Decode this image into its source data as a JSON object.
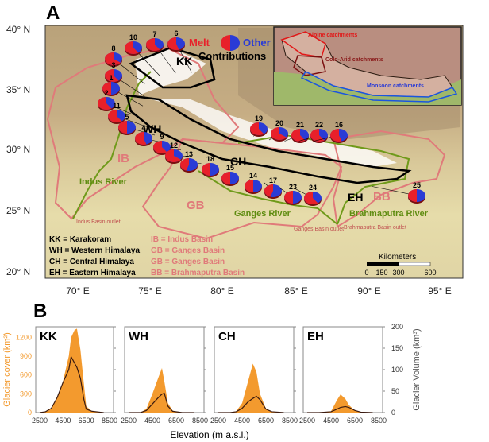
{
  "panel_a": {
    "letter": "A",
    "lat_labels": [
      "40° N",
      "35° N",
      "30° N",
      "25° N",
      "20° N"
    ],
    "lon_labels": [
      "70° E",
      "75° E",
      "80° E",
      "85° E",
      "90° E",
      "95° E"
    ],
    "pie_legend": {
      "melt": "Melt",
      "other": "Other",
      "contributions": "Contributions"
    },
    "colors": {
      "melt": "#e8202a",
      "other": "#2a3bd6",
      "basin": "#e07a7a",
      "river": "#7aa51f",
      "region": "#000000"
    },
    "region_labels": [
      "KK",
      "WH",
      "CH",
      "EH"
    ],
    "basin_labels": [
      "IB",
      "GB",
      "BB"
    ],
    "rivers": [
      "Indus River",
      "Ganges River",
      "Brahmaputra River"
    ],
    "outlets": [
      "Indus Basin outlet",
      "Ganges Basin outlet",
      "Brahmaputra Basin outlet"
    ],
    "legend_rows": [
      {
        "left": "KK  =  Karakoram",
        "right": "IB  = Indus Basin"
      },
      {
        "left": "WH  =  Western Himalaya",
        "right": "GB = Ganges Basin"
      },
      {
        "left": "CH  =  Central Himalaya",
        "right": "GB = Ganges Basin"
      },
      {
        "left": "EH  =  Eastern Himalaya",
        "right": "BB  = Brahmaputra Basin"
      }
    ],
    "scale": {
      "title": "Kilometers",
      "ticks": [
        "0",
        "150",
        "300",
        "600"
      ]
    },
    "inset_labels": [
      "Alpine catchments",
      "Cold-Arid catchments",
      "Monsoon catchments"
    ],
    "pies": [
      {
        "id": "6",
        "melt_fraction": 0.55
      },
      {
        "id": "7",
        "melt_fraction": 0.6
      },
      {
        "id": "10",
        "melt_fraction": 0.6
      },
      {
        "id": "8",
        "melt_fraction": 0.65
      },
      {
        "id": "3",
        "melt_fraction": 0.6
      },
      {
        "id": "1",
        "melt_fraction": 0.5
      },
      {
        "id": "2",
        "melt_fraction": 0.6
      },
      {
        "id": "11",
        "melt_fraction": 0.6
      },
      {
        "id": "5",
        "melt_fraction": 0.5
      },
      {
        "id": "4",
        "melt_fraction": 0.55
      },
      {
        "id": "9",
        "melt_fraction": 0.6
      },
      {
        "id": "12",
        "melt_fraction": 0.65
      },
      {
        "id": "13",
        "melt_fraction": 0.45
      },
      {
        "id": "18",
        "melt_fraction": 0.5
      },
      {
        "id": "15",
        "melt_fraction": 0.5
      },
      {
        "id": "14",
        "melt_fraction": 0.5
      },
      {
        "id": "17",
        "melt_fraction": 0.45
      },
      {
        "id": "23",
        "melt_fraction": 0.5
      },
      {
        "id": "24",
        "melt_fraction": 0.6
      },
      {
        "id": "19",
        "melt_fraction": 0.6
      },
      {
        "id": "20",
        "melt_fraction": 0.65
      },
      {
        "id": "21",
        "melt_fraction": 0.6
      },
      {
        "id": "22",
        "melt_fraction": 0.6
      },
      {
        "id": "16",
        "melt_fraction": 0.55
      },
      {
        "id": "25",
        "melt_fraction": 0.5
      }
    ]
  },
  "panel_b": {
    "letter": "B"
  },
  "chart_data": [
    {
      "type": "area",
      "title": "KK",
      "xlabel": "Elevation (m a.s.l.)",
      "ylabel": "Glacier cover (km²)",
      "ylabel_right": "Glacier Volume (km³)",
      "xlim": [
        2500,
        8500
      ],
      "ylim": [
        0,
        1370
      ],
      "ylim_right": [
        0,
        200
      ],
      "xticks": [
        "2500",
        "4500",
        "6500",
        "8500"
      ],
      "yticks": [
        "0",
        "300",
        "600",
        "900",
        "1200"
      ],
      "yticks_right": [
        "0",
        "50",
        "100",
        "150",
        "200"
      ],
      "x": [
        2500,
        3000,
        3500,
        4000,
        4500,
        5000,
        5200,
        5500,
        5700,
        6000,
        6300,
        6500,
        7000,
        8000
      ],
      "cover": [
        0,
        10,
        60,
        230,
        500,
        900,
        1200,
        1320,
        1340,
        1000,
        450,
        100,
        20,
        0
      ],
      "volume": [
        0,
        2,
        10,
        35,
        70,
        100,
        130,
        115,
        105,
        80,
        30,
        8,
        3,
        0
      ]
    },
    {
      "type": "area",
      "title": "WH",
      "xlim": [
        2500,
        8500
      ],
      "ylim": [
        0,
        1370
      ],
      "ylim_right": [
        0,
        200
      ],
      "xticks": [
        "2500",
        "4500",
        "6500",
        "8500"
      ],
      "x": [
        2500,
        3500,
        4000,
        4500,
        5000,
        5300,
        5500,
        5800,
        6200,
        7000,
        8000
      ],
      "cover": [
        0,
        0,
        60,
        300,
        560,
        710,
        500,
        150,
        30,
        0,
        0
      ],
      "volume": [
        0,
        0,
        5,
        20,
        35,
        43,
        45,
        15,
        3,
        0,
        0
      ]
    },
    {
      "type": "area",
      "title": "CH",
      "xlim": [
        2500,
        8500
      ],
      "ylim": [
        0,
        1370
      ],
      "ylim_right": [
        0,
        200
      ],
      "xticks": [
        "2500",
        "4500",
        "6500",
        "8500"
      ],
      "x": [
        2500,
        3500,
        4000,
        4500,
        5000,
        5400,
        5700,
        6000,
        6500,
        7000,
        8000
      ],
      "cover": [
        0,
        0,
        20,
        150,
        500,
        780,
        650,
        300,
        60,
        10,
        0
      ],
      "volume": [
        0,
        0,
        2,
        10,
        25,
        33,
        38,
        30,
        8,
        2,
        0
      ]
    },
    {
      "type": "area",
      "title": "EH",
      "xlim": [
        2500,
        8500
      ],
      "ylim": [
        0,
        1370
      ],
      "ylim_right": [
        0,
        200
      ],
      "xticks": [
        "2500",
        "4500",
        "6500",
        "8500"
      ],
      "x": [
        2500,
        3500,
        4500,
        5000,
        5300,
        5700,
        6000,
        6500,
        7000,
        8000
      ],
      "cover": [
        0,
        0,
        20,
        200,
        290,
        220,
        120,
        30,
        5,
        0
      ],
      "volume": [
        0,
        0,
        2,
        8,
        12,
        14,
        12,
        5,
        1,
        0
      ]
    }
  ]
}
